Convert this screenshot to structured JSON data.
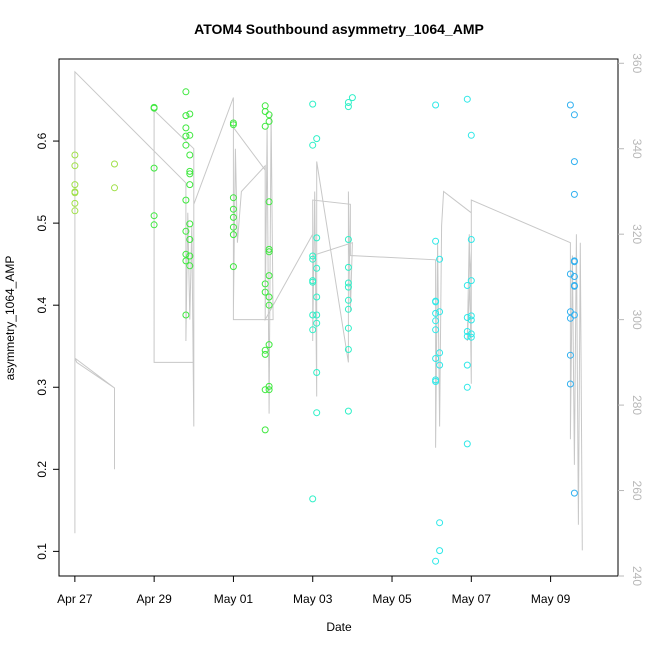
{
  "chart_data": {
    "type": "scatter",
    "title": "ATOM4 Southbound asymmetry_1064_AMP",
    "xlabel": "Date",
    "ylabel": "asymmetry_1064_AMP",
    "x_ticks": [
      "Apr 27",
      "Apr 29",
      "May 01",
      "May 03",
      "May 05",
      "May 07",
      "May 09"
    ],
    "x_range_days": [
      26.6,
      40.7
    ],
    "ylim": [
      0.07,
      0.7
    ],
    "y_ticks": [
      0.1,
      0.2,
      0.3,
      0.4,
      0.5,
      0.6
    ],
    "y_tick_labels": [
      "0.1",
      "0.2",
      "0.3",
      "0.4",
      "0.5",
      "0.6"
    ],
    "y2lim": [
      240,
      361
    ],
    "y2_ticks": [
      240,
      260,
      280,
      300,
      320,
      340,
      360
    ],
    "y2_tick_labels": [
      "240",
      "260",
      "280",
      "300",
      "320",
      "340",
      "360"
    ],
    "grid": false,
    "legend": "none",
    "colors": {
      "early": "#a0e048",
      "mid": "#3ee83e",
      "cyan": "#30f0c8",
      "aqua": "#30e8e8",
      "blue": "#30b0f0",
      "line": "#c8c8c8",
      "axis": "#000000",
      "right_axis": "#b8b8b8"
    },
    "series": [
      {
        "color_key": "early",
        "points": [
          [
            27.0,
            0.583
          ],
          [
            27.0,
            0.57
          ],
          [
            27.0,
            0.547
          ],
          [
            27.0,
            0.538
          ],
          [
            27.0,
            0.537
          ],
          [
            27.0,
            0.524
          ],
          [
            27.0,
            0.515
          ],
          [
            28.0,
            0.572
          ],
          [
            28.0,
            0.543
          ]
        ]
      },
      {
        "color_key": "mid",
        "points": [
          [
            29.0,
            0.641
          ],
          [
            29.0,
            0.64
          ],
          [
            29.0,
            0.567
          ],
          [
            29.0,
            0.509
          ],
          [
            29.0,
            0.498
          ],
          [
            29.8,
            0.66
          ],
          [
            29.8,
            0.631
          ],
          [
            29.8,
            0.616
          ],
          [
            29.8,
            0.606
          ],
          [
            29.8,
            0.595
          ],
          [
            29.8,
            0.528
          ],
          [
            29.8,
            0.49
          ],
          [
            29.8,
            0.462
          ],
          [
            29.8,
            0.454
          ],
          [
            29.8,
            0.388
          ],
          [
            29.9,
            0.633
          ],
          [
            29.9,
            0.607
          ],
          [
            29.9,
            0.583
          ],
          [
            29.9,
            0.563
          ],
          [
            29.9,
            0.56
          ],
          [
            29.9,
            0.547
          ],
          [
            29.9,
            0.499
          ],
          [
            29.9,
            0.48
          ],
          [
            29.9,
            0.46
          ],
          [
            29.9,
            0.448
          ],
          [
            31.0,
            0.622
          ],
          [
            31.0,
            0.62
          ],
          [
            31.0,
            0.531
          ],
          [
            31.0,
            0.517
          ],
          [
            31.0,
            0.507
          ],
          [
            31.0,
            0.495
          ],
          [
            31.0,
            0.486
          ],
          [
            31.0,
            0.447
          ],
          [
            31.8,
            0.643
          ],
          [
            31.8,
            0.636
          ],
          [
            31.8,
            0.618
          ],
          [
            31.8,
            0.426
          ],
          [
            31.8,
            0.416
          ],
          [
            31.8,
            0.345
          ],
          [
            31.8,
            0.34
          ],
          [
            31.8,
            0.297
          ],
          [
            31.8,
            0.248
          ],
          [
            31.9,
            0.632
          ],
          [
            31.9,
            0.624
          ],
          [
            31.9,
            0.526
          ],
          [
            31.9,
            0.468
          ],
          [
            31.9,
            0.465
          ],
          [
            31.9,
            0.436
          ],
          [
            31.9,
            0.41
          ],
          [
            31.9,
            0.4
          ],
          [
            31.9,
            0.352
          ],
          [
            31.9,
            0.301
          ],
          [
            31.9,
            0.297
          ]
        ]
      },
      {
        "color_key": "cyan",
        "points": [
          [
            33.0,
            0.645
          ],
          [
            33.0,
            0.595
          ],
          [
            33.0,
            0.46
          ],
          [
            33.0,
            0.456
          ],
          [
            33.0,
            0.43
          ],
          [
            33.0,
            0.428
          ],
          [
            33.0,
            0.388
          ],
          [
            33.0,
            0.37
          ],
          [
            33.0,
            0.164
          ],
          [
            33.1,
            0.603
          ],
          [
            33.1,
            0.482
          ],
          [
            33.1,
            0.445
          ],
          [
            33.1,
            0.41
          ],
          [
            33.1,
            0.388
          ],
          [
            33.1,
            0.378
          ],
          [
            33.1,
            0.318
          ],
          [
            33.1,
            0.269
          ],
          [
            33.9,
            0.647
          ],
          [
            33.9,
            0.642
          ],
          [
            33.9,
            0.48
          ],
          [
            33.9,
            0.446
          ],
          [
            33.9,
            0.427
          ],
          [
            33.9,
            0.422
          ],
          [
            33.9,
            0.406
          ],
          [
            33.9,
            0.395
          ],
          [
            33.9,
            0.372
          ],
          [
            33.9,
            0.346
          ],
          [
            33.9,
            0.271
          ],
          [
            34.0,
            0.653
          ]
        ]
      },
      {
        "color_key": "aqua",
        "points": [
          [
            36.1,
            0.644
          ],
          [
            36.1,
            0.478
          ],
          [
            36.1,
            0.405
          ],
          [
            36.1,
            0.404
          ],
          [
            36.1,
            0.39
          ],
          [
            36.1,
            0.381
          ],
          [
            36.1,
            0.37
          ],
          [
            36.1,
            0.335
          ],
          [
            36.1,
            0.309
          ],
          [
            36.1,
            0.307
          ],
          [
            36.1,
            0.088
          ],
          [
            36.2,
            0.456
          ],
          [
            36.2,
            0.392
          ],
          [
            36.2,
            0.342
          ],
          [
            36.2,
            0.327
          ],
          [
            36.2,
            0.135
          ],
          [
            36.2,
            0.101
          ],
          [
            36.9,
            0.651
          ],
          [
            36.9,
            0.424
          ],
          [
            36.9,
            0.385
          ],
          [
            36.9,
            0.368
          ],
          [
            36.9,
            0.362
          ],
          [
            36.9,
            0.327
          ],
          [
            36.9,
            0.3
          ],
          [
            36.9,
            0.231
          ],
          [
            37.0,
            0.607
          ],
          [
            37.0,
            0.48
          ],
          [
            37.0,
            0.43
          ],
          [
            37.0,
            0.387
          ],
          [
            37.0,
            0.382
          ],
          [
            37.0,
            0.365
          ],
          [
            37.0,
            0.361
          ]
        ]
      },
      {
        "color_key": "blue",
        "points": [
          [
            39.5,
            0.644
          ],
          [
            39.5,
            0.438
          ],
          [
            39.5,
            0.392
          ],
          [
            39.5,
            0.384
          ],
          [
            39.5,
            0.339
          ],
          [
            39.5,
            0.304
          ],
          [
            39.6,
            0.632
          ],
          [
            39.6,
            0.575
          ],
          [
            39.6,
            0.535
          ],
          [
            39.6,
            0.454
          ],
          [
            39.6,
            0.453
          ],
          [
            39.6,
            0.435
          ],
          [
            39.6,
            0.424
          ],
          [
            39.6,
            0.423
          ],
          [
            39.6,
            0.388
          ],
          [
            39.6,
            0.171
          ]
        ]
      }
    ],
    "line_series": [
      [
        27.0,
        310
      ],
      [
        27.0,
        250
      ],
      [
        27.0,
        291
      ],
      [
        27.05,
        290
      ],
      [
        28.0,
        284
      ],
      [
        28.0,
        265
      ],
      [
        28.0,
        284
      ],
      [
        27.0,
        291
      ],
      [
        27.0,
        358
      ],
      [
        29.8,
        332
      ],
      [
        29.8,
        295
      ],
      [
        29.85,
        325
      ],
      [
        29.9,
        300
      ],
      [
        29.95,
        322
      ],
      [
        30.0,
        275
      ],
      [
        30.0,
        340
      ],
      [
        29.0,
        349
      ],
      [
        29.0,
        290
      ],
      [
        30.0,
        290
      ],
      [
        30.0,
        327
      ],
      [
        31.0,
        352
      ],
      [
        31.0,
        302
      ],
      [
        31.05,
        340
      ],
      [
        31.1,
        318
      ],
      [
        31.2,
        330
      ],
      [
        31.8,
        336
      ],
      [
        31.8,
        300
      ],
      [
        31.85,
        345
      ],
      [
        31.9,
        278
      ],
      [
        31.95,
        348
      ],
      [
        32.0,
        300
      ],
      [
        31.0,
        300
      ],
      [
        31.0,
        345
      ],
      [
        31.8,
        335
      ],
      [
        31.8,
        300
      ],
      [
        33.0,
        320
      ],
      [
        33.0,
        295
      ],
      [
        33.05,
        330
      ],
      [
        33.1,
        282
      ],
      [
        33.1,
        337
      ],
      [
        33.9,
        290
      ],
      [
        33.9,
        330
      ],
      [
        33.95,
        302
      ],
      [
        34.0,
        318
      ],
      [
        33.0,
        315
      ],
      [
        33.0,
        328
      ],
      [
        33.95,
        327
      ],
      [
        33.95,
        315
      ],
      [
        36.1,
        314
      ],
      [
        36.1,
        270
      ],
      [
        36.15,
        318
      ],
      [
        36.2,
        275
      ],
      [
        36.25,
        322
      ],
      [
        36.3,
        330
      ],
      [
        37.0,
        325
      ],
      [
        37.0,
        285
      ],
      [
        36.95,
        320
      ],
      [
        36.9,
        295
      ],
      [
        37.0,
        316
      ],
      [
        37.0,
        328
      ],
      [
        39.5,
        318
      ],
      [
        39.5,
        272
      ],
      [
        39.55,
        315
      ],
      [
        39.6,
        266
      ],
      [
        39.65,
        320
      ],
      [
        39.7,
        252
      ],
      [
        39.75,
        318
      ],
      [
        39.8,
        246
      ]
    ]
  }
}
